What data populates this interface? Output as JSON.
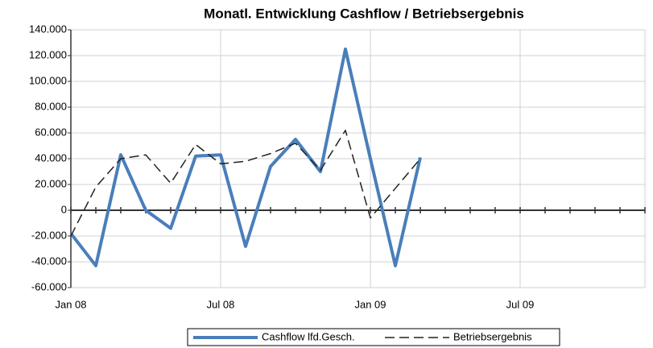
{
  "chart_data": {
    "type": "line",
    "title": "Monatl. Entwicklung Cashflow / Betriebsergebnis",
    "categories": [
      "Jan 08",
      null,
      null,
      null,
      null,
      null,
      "Jul 08",
      null,
      null,
      null,
      null,
      null,
      "Jan 09",
      null,
      null,
      null,
      null,
      null,
      "Jul 09",
      null,
      null,
      null,
      null,
      null
    ],
    "series": [
      {
        "name": "Cashflow lfd.Gesch.",
        "color": "#4a7ebb",
        "dash": false,
        "values": [
          -18000,
          -43000,
          43000,
          0,
          -14000,
          42000,
          43000,
          -28000,
          34000,
          55000,
          30000,
          125000,
          40000,
          -43000,
          41000,
          null,
          null,
          null,
          null,
          null,
          null,
          null,
          null,
          null
        ]
      },
      {
        "name": "Betriebsergebnis",
        "color": "#222222",
        "dash": true,
        "values": [
          -20000,
          18000,
          40000,
          43000,
          21000,
          51000,
          36000,
          38000,
          44000,
          52000,
          31000,
          62000,
          -6000,
          17000,
          40000,
          null,
          null,
          null,
          null,
          null,
          null,
          null,
          null,
          null
        ]
      }
    ],
    "ylim": [
      -60000,
      140000
    ],
    "yticks": [
      {
        "value": -60000,
        "label": "-60.000"
      },
      {
        "value": -40000,
        "label": "-40.000"
      },
      {
        "value": -20000,
        "label": "-20.000"
      },
      0,
      {
        "value": 20000,
        "label": "20.000"
      },
      {
        "value": 40000,
        "label": "40.000"
      },
      {
        "value": 60000,
        "label": "60.000"
      },
      {
        "value": 80000,
        "label": "80.000"
      },
      {
        "value": 100000,
        "label": "100.000"
      },
      {
        "value": 120000,
        "label": "120.000"
      },
      {
        "value": 140000,
        "label": "140.000"
      }
    ],
    "grid": true
  }
}
